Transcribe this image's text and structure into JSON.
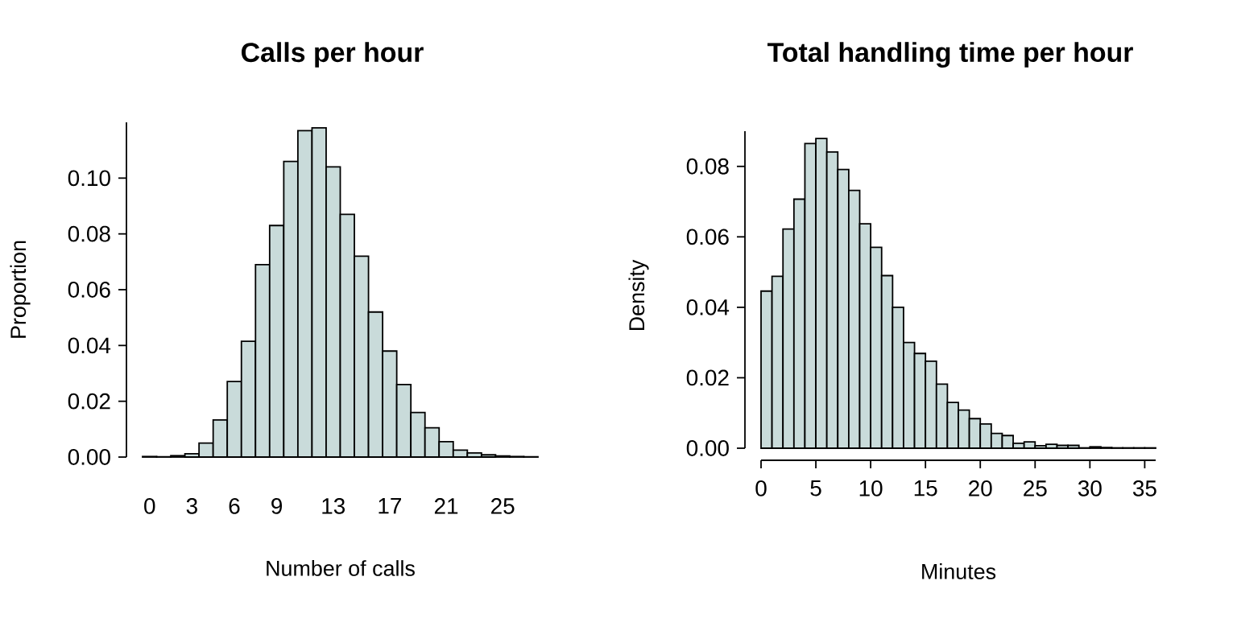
{
  "chart_data": [
    {
      "type": "bar",
      "title": "Calls per hour",
      "xlabel": "Number of calls",
      "ylabel": "Proportion",
      "categories": [
        "0",
        null,
        null,
        "3",
        null,
        null,
        "6",
        null,
        null,
        "9",
        null,
        null,
        null,
        "13",
        null,
        null,
        null,
        "17",
        null,
        null,
        null,
        "21",
        null,
        null,
        null,
        "25",
        null,
        null
      ],
      "values": [
        0.0002,
        0.0001,
        0.0005,
        0.0012,
        0.005,
        0.0133,
        0.0271,
        0.0415,
        0.069,
        0.083,
        0.106,
        0.117,
        0.118,
        0.104,
        0.087,
        0.072,
        0.052,
        0.038,
        0.026,
        0.016,
        0.0105,
        0.0055,
        0.0025,
        0.0015,
        0.0008,
        0.0004,
        0.0002,
        0.0001
      ],
      "color": "#c9dbda",
      "ylim": [
        0,
        0.12
      ],
      "yticks": [
        {
          "value": 0,
          "label": "0.00"
        },
        {
          "value": 0.02,
          "label": "0.02"
        },
        {
          "value": 0.04,
          "label": "0.04"
        },
        {
          "value": 0.06,
          "label": "0.06"
        },
        {
          "value": 0.08,
          "label": "0.08"
        },
        {
          "value": 0.1,
          "label": "0.10"
        }
      ]
    },
    {
      "type": "histogram",
      "title": "Total handling time per hour",
      "xlabel": "Minutes",
      "ylabel": "Density",
      "bins": [
        0,
        1,
        2,
        3,
        4,
        5,
        6,
        7,
        8,
        9,
        10,
        11,
        12,
        13,
        14,
        15,
        16,
        17,
        18,
        19,
        20,
        21,
        22,
        23,
        24,
        25,
        26,
        27,
        28,
        29,
        30,
        31,
        32,
        33,
        34,
        35,
        36
      ],
      "values": [
        0.0446,
        0.0488,
        0.0622,
        0.0707,
        0.0865,
        0.0879,
        0.0841,
        0.0791,
        0.0732,
        0.0637,
        0.057,
        0.049,
        0.04,
        0.03,
        0.0269,
        0.0247,
        0.0182,
        0.013,
        0.0108,
        0.0084,
        0.0069,
        0.0042,
        0.0036,
        0.0014,
        0.0018,
        0.0007,
        0.0011,
        0.0008,
        0.0008,
        0.0001,
        0.0004,
        0.0002,
        0.0001,
        0.0001,
        0.0001,
        0.0001
      ],
      "color": "#c9dbda",
      "xlim": [
        0,
        36
      ],
      "xticks": [
        0,
        5,
        10,
        15,
        20,
        25,
        30,
        35
      ],
      "ylim": [
        0,
        0.09
      ],
      "yticks": [
        {
          "value": 0,
          "label": "0.00"
        },
        {
          "value": 0.02,
          "label": "0.02"
        },
        {
          "value": 0.04,
          "label": "0.04"
        },
        {
          "value": 0.06,
          "label": "0.06"
        },
        {
          "value": 0.08,
          "label": "0.08"
        }
      ]
    }
  ]
}
